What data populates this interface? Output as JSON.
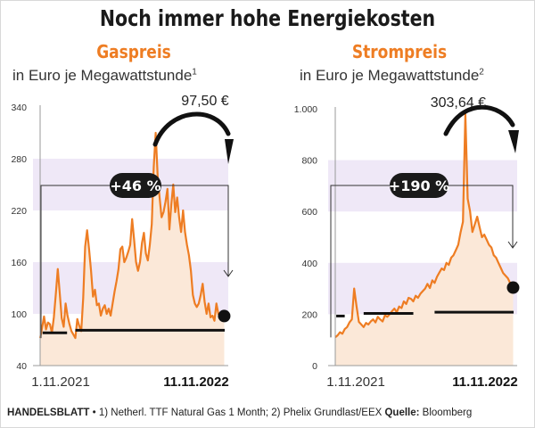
{
  "title": "Noch immer hohe Energiekosten",
  "footer": {
    "brand": "HANDELSBLATT",
    "note": " • 1) Netherl. TTF Natural Gas 1 Month; 2) Phelix Grundlast/EEX ",
    "source_label": "Quelle:",
    "source": " Bloomberg"
  },
  "colors": {
    "line": "#ee7d23",
    "area": "#fbe8d8",
    "band": "#efe8f7",
    "accent_title": "#ee7d23",
    "badge": "#1a1a1a"
  },
  "chart_data": [
    {
      "type": "area",
      "title": "Gaspreis",
      "subtitle": "in Euro je Megawattstunde",
      "footnote_mark": "1",
      "ylim": [
        40,
        340
      ],
      "yticks": [
        40,
        100,
        160,
        220,
        280,
        340
      ],
      "ytick_labels": [
        "40",
        "100",
        "160",
        "220",
        "280",
        "340"
      ],
      "xtick_labels": [
        "1.11.2021",
        "11.11.2022"
      ],
      "x_range": [
        0,
        377
      ],
      "current_value": 97.5,
      "current_label": "97,50 €",
      "change_label": "+46 %",
      "reference_levels": [
        {
          "x": [
            5,
            55
          ],
          "y": 78
        },
        {
          "x": [
            72,
            377
          ],
          "y": 81
        }
      ],
      "series": [
        {
          "x": [
            0,
            4,
            8,
            12,
            16,
            20,
            24,
            28,
            32,
            36,
            40,
            44,
            48,
            52,
            56,
            60,
            64,
            68,
            72,
            76,
            80,
            84,
            88,
            92,
            96,
            100,
            104,
            108,
            112,
            116,
            120,
            124,
            128,
            132,
            136,
            140,
            144,
            148,
            152,
            156,
            160,
            164,
            168,
            172,
            176,
            180,
            184,
            188,
            192,
            196,
            200,
            204,
            208,
            212,
            216,
            220,
            224,
            228,
            232,
            236,
            240,
            244,
            248,
            252,
            256,
            260,
            264,
            268,
            272,
            276,
            280,
            284,
            288,
            292,
            296,
            300,
            304,
            308,
            312,
            316,
            320,
            324,
            328,
            332,
            336,
            340,
            344,
            348,
            352,
            356,
            360,
            364,
            368,
            372,
            376
          ],
          "y": [
            72,
            84,
            97,
            82,
            90,
            88,
            78,
            96,
            123,
            152,
            124,
            95,
            85,
            112,
            98,
            88,
            80,
            76,
            72,
            94,
            86,
            80,
            118,
            178,
            197,
            175,
            150,
            120,
            128,
            110,
            112,
            98,
            106,
            110,
            100,
            106,
            98,
            112,
            126,
            138,
            152,
            175,
            178,
            160,
            165,
            172,
            180,
            210,
            186,
            160,
            150,
            160,
            182,
            194,
            170,
            162,
            180,
            204,
            270,
            310,
            260,
            235,
            212,
            218,
            230,
            245,
            198,
            228,
            250,
            218,
            235,
            212,
            195,
            220,
            195,
            180,
            168,
            150,
            122,
            112,
            108,
            112,
            122,
            135,
            114,
            100,
            112,
            96,
            98,
            92,
            112,
            100,
            101,
            99,
            97.5
          ]
        }
      ]
    },
    {
      "type": "area",
      "title": "Strompreis",
      "subtitle": "in Euro je Megawattstunde",
      "footnote_mark": "2",
      "ylim": [
        0,
        1000
      ],
      "yticks": [
        0,
        200,
        400,
        600,
        800,
        1000
      ],
      "ytick_labels": [
        "0",
        "200",
        "400",
        "600",
        "800",
        "1.000"
      ],
      "xtick_labels": [
        "1.11.2021",
        "11.11.2022"
      ],
      "x_range": [
        0,
        377
      ],
      "current_value": 303.64,
      "current_label": "303,64 €",
      "change_label": "+190 %",
      "reference_levels": [
        {
          "x": [
            2,
            20
          ],
          "y": 193
        },
        {
          "x": [
            60,
            165
          ],
          "y": 203
        },
        {
          "x": [
            210,
            377
          ],
          "y": 208
        }
      ],
      "series": [
        {
          "x": [
            0,
            5,
            10,
            15,
            20,
            25,
            30,
            35,
            40,
            45,
            50,
            55,
            60,
            65,
            70,
            75,
            80,
            85,
            90,
            95,
            100,
            105,
            110,
            115,
            120,
            125,
            130,
            135,
            140,
            145,
            150,
            155,
            160,
            165,
            170,
            175,
            180,
            185,
            190,
            195,
            200,
            205,
            210,
            215,
            220,
            225,
            230,
            235,
            240,
            245,
            250,
            255,
            260,
            265,
            270,
            275,
            280,
            285,
            290,
            295,
            300,
            305,
            310,
            315,
            320,
            325,
            330,
            335,
            340,
            345,
            350,
            355,
            360,
            365,
            370,
            376
          ],
          "y": [
            110,
            118,
            130,
            124,
            142,
            150,
            168,
            180,
            300,
            230,
            170,
            160,
            150,
            166,
            160,
            172,
            180,
            168,
            190,
            180,
            172,
            196,
            190,
            200,
            212,
            222,
            208,
            230,
            224,
            250,
            240,
            264,
            260,
            250,
            272,
            264,
            280,
            290,
            300,
            318,
            302,
            332,
            322,
            346,
            362,
            378,
            372,
            400,
            392,
            420,
            430,
            450,
            470,
            520,
            560,
            980,
            650,
            600,
            520,
            550,
            580,
            540,
            500,
            510,
            490,
            470,
            460,
            430,
            420,
            400,
            380,
            360,
            350,
            340,
            320,
            303.64
          ]
        }
      ]
    }
  ]
}
